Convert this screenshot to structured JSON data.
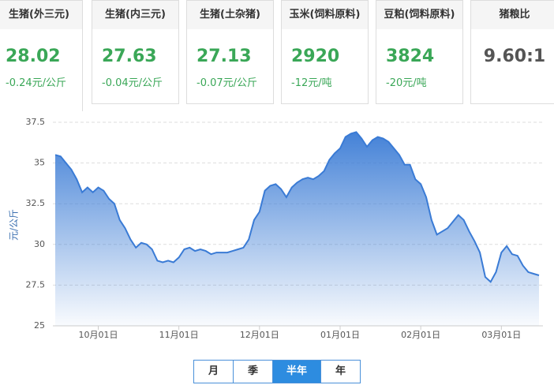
{
  "cards": [
    {
      "title": "生猪(外三元)",
      "price": "28.02",
      "change": "-0.24元/公斤"
    },
    {
      "title": "生猪(内三元)",
      "price": "27.63",
      "change": "-0.04元/公斤"
    },
    {
      "title": "生猪(土杂猪)",
      "price": "27.13",
      "change": "-0.07元/公斤"
    },
    {
      "title": "玉米(饲料原料)",
      "price": "2920",
      "change": "-12元/吨"
    },
    {
      "title": "豆粕(饲料原料)",
      "price": "3824",
      "change": "-20元/吨"
    },
    {
      "title": "猪粮比",
      "price": "9.60:1"
    }
  ],
  "buttons": [
    "月",
    "季",
    "半年",
    "年"
  ],
  "chart_data": {
    "type": "area",
    "ylabel": "元/公斤",
    "color": "#3a7bd5",
    "categories": [
      null,
      null,
      null,
      null,
      null,
      null,
      null,
      null,
      "10月01日",
      null,
      null,
      null,
      null,
      null,
      null,
      null,
      null,
      null,
      null,
      null,
      null,
      null,
      null,
      "11月01日",
      null,
      null,
      null,
      null,
      null,
      null,
      null,
      null,
      null,
      null,
      null,
      null,
      null,
      null,
      "12月01日",
      null,
      null,
      null,
      null,
      null,
      null,
      null,
      null,
      null,
      null,
      null,
      null,
      null,
      null,
      "01月01日",
      null,
      null,
      null,
      null,
      null,
      null,
      null,
      null,
      null,
      null,
      null,
      null,
      null,
      null,
      "02月01日",
      null,
      null,
      null,
      null,
      null,
      null,
      null,
      null,
      null,
      null,
      null,
      null,
      null,
      null,
      "03月01日",
      null,
      null,
      null,
      null,
      null,
      null,
      null
    ],
    "values": [
      35.5,
      35.4,
      35.0,
      34.6,
      34.0,
      33.2,
      33.5,
      33.2,
      33.5,
      33.3,
      32.8,
      32.5,
      31.5,
      31.0,
      30.3,
      29.8,
      30.1,
      30.0,
      29.7,
      29.0,
      28.9,
      29.0,
      28.9,
      29.2,
      29.7,
      29.8,
      29.6,
      29.7,
      29.6,
      29.4,
      29.5,
      29.5,
      29.5,
      29.6,
      29.7,
      29.8,
      30.3,
      31.5,
      32.0,
      33.3,
      33.6,
      33.7,
      33.4,
      32.9,
      33.5,
      33.8,
      34.0,
      34.1,
      34.0,
      34.2,
      34.5,
      35.2,
      35.6,
      35.9,
      36.6,
      36.8,
      36.9,
      36.5,
      36.0,
      36.4,
      36.6,
      36.5,
      36.3,
      35.9,
      35.5,
      34.9,
      34.9,
      34.0,
      33.7,
      32.9,
      31.5,
      30.6,
      30.8,
      31.0,
      31.4,
      31.8,
      31.5,
      30.8,
      30.2,
      29.5,
      28.0,
      27.7,
      28.3,
      29.5,
      29.9,
      29.4,
      29.3,
      28.7,
      28.3,
      28.2,
      28.1
    ],
    "ylim": [
      25,
      37.5
    ],
    "yticks": [
      25,
      27.5,
      30,
      32.5,
      35,
      37.5
    ],
    "grid": true
  }
}
